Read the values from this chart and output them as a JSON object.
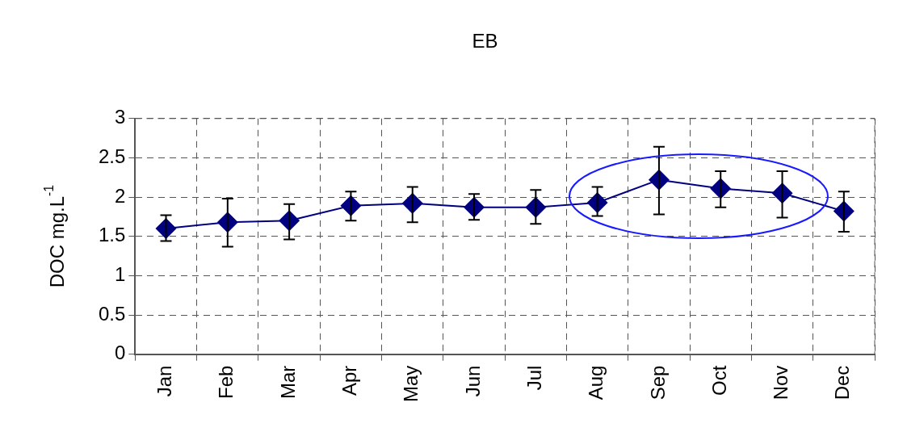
{
  "chart_data": {
    "type": "line",
    "title": "EB",
    "ylabel": "DOC mg.L$^{-1}$",
    "categories": [
      "Jan",
      "Feb",
      "Mar",
      "Apr",
      "May",
      "Jun",
      "Jul",
      "Aug",
      "Sep",
      "Oct",
      "Nov",
      "Dec"
    ],
    "series": [
      {
        "color": "#000080",
        "values": [
          1.6,
          1.68,
          1.7,
          1.89,
          1.92,
          1.87,
          1.87,
          1.93,
          2.22,
          2.11,
          2.05,
          1.82
        ],
        "errors": [
          [
            1.44,
            1.77
          ],
          [
            1.37,
            1.98
          ],
          [
            1.46,
            1.91
          ],
          [
            1.7,
            2.07
          ],
          [
            1.68,
            2.13
          ],
          [
            1.71,
            2.04
          ],
          [
            1.66,
            2.09
          ],
          [
            1.76,
            2.13
          ],
          [
            1.78,
            2.64
          ],
          [
            1.87,
            2.33
          ],
          [
            1.74,
            2.33
          ],
          [
            1.56,
            2.07
          ]
        ]
      }
    ],
    "ylim": [
      0,
      3
    ],
    "yticks": [
      0,
      0.5,
      1,
      1.5,
      2,
      2.5,
      3
    ],
    "grid": true,
    "legend": false,
    "marker": "diamond",
    "line_style": "solid"
  }
}
